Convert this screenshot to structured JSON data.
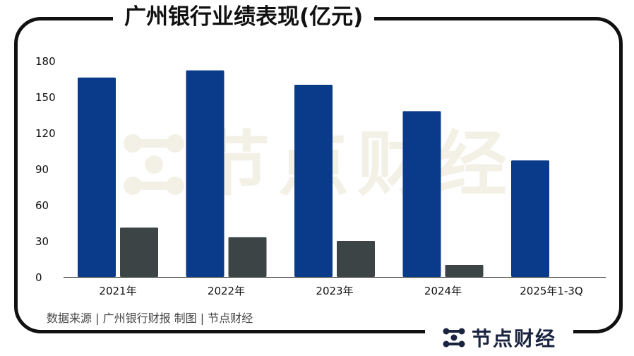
{
  "title": "广州银行业绩表现(亿元)",
  "source": "数据来源 | 广州银行财报   制图 | 节点财经",
  "brand": "节点财经",
  "watermark": "节点财经",
  "colors": {
    "series_a": "#0a3a8a",
    "series_b": "#3c4446",
    "watermark": "#f3f1e6",
    "frame": "#111111"
  },
  "chart_data": {
    "type": "bar",
    "categories": [
      "2021年",
      "2022年",
      "2023年",
      "2024年",
      "2025年1-3Q"
    ],
    "series": [
      {
        "values": [
          166,
          172,
          160,
          138,
          97
        ]
      },
      {
        "values": [
          41,
          33,
          30,
          10,
          null
        ]
      }
    ],
    "yticks": [
      0,
      30,
      60,
      90,
      120,
      150,
      180
    ],
    "ylim": [
      0,
      180
    ],
    "grid": false,
    "legend": "none"
  }
}
